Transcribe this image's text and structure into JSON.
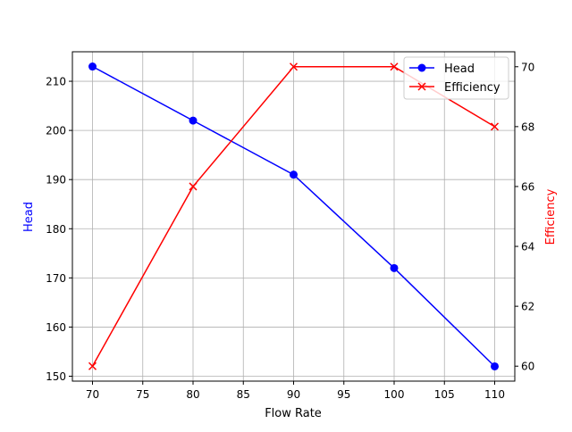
{
  "chart_data": {
    "type": "line",
    "title": "",
    "xlabel": "Flow Rate",
    "ylabel": "Head",
    "y2label": "Efficiency",
    "x": [
      70,
      80,
      90,
      100,
      110
    ],
    "series": [
      {
        "name": "Head",
        "axis": "left",
        "values": [
          213,
          202,
          191,
          172,
          152
        ],
        "color": "#0000ff",
        "marker": "circle"
      },
      {
        "name": "Efficiency",
        "axis": "right",
        "values": [
          60,
          66,
          70,
          70,
          68
        ],
        "color": "#ff0000",
        "marker": "x"
      }
    ],
    "xlim": [
      68,
      112
    ],
    "ylim": [
      149,
      216
    ],
    "y2lim": [
      59.5,
      70.5
    ],
    "xticks": [
      70,
      75,
      80,
      85,
      90,
      95,
      100,
      105,
      110
    ],
    "yticks": [
      150,
      160,
      170,
      180,
      190,
      200,
      210
    ],
    "y2ticks": [
      60,
      62,
      64,
      66,
      68,
      70
    ],
    "grid": true,
    "legend_position": "upper right"
  },
  "legend": {
    "items": [
      {
        "label": "Head",
        "color": "#0000ff"
      },
      {
        "label": "Efficiency",
        "color": "#ff0000"
      }
    ]
  },
  "axes": {
    "xlabel": "Flow Rate",
    "ylabel_left": "Head",
    "ylabel_right": "Efficiency",
    "left_color": "#0000ff",
    "right_color": "#ff0000"
  }
}
